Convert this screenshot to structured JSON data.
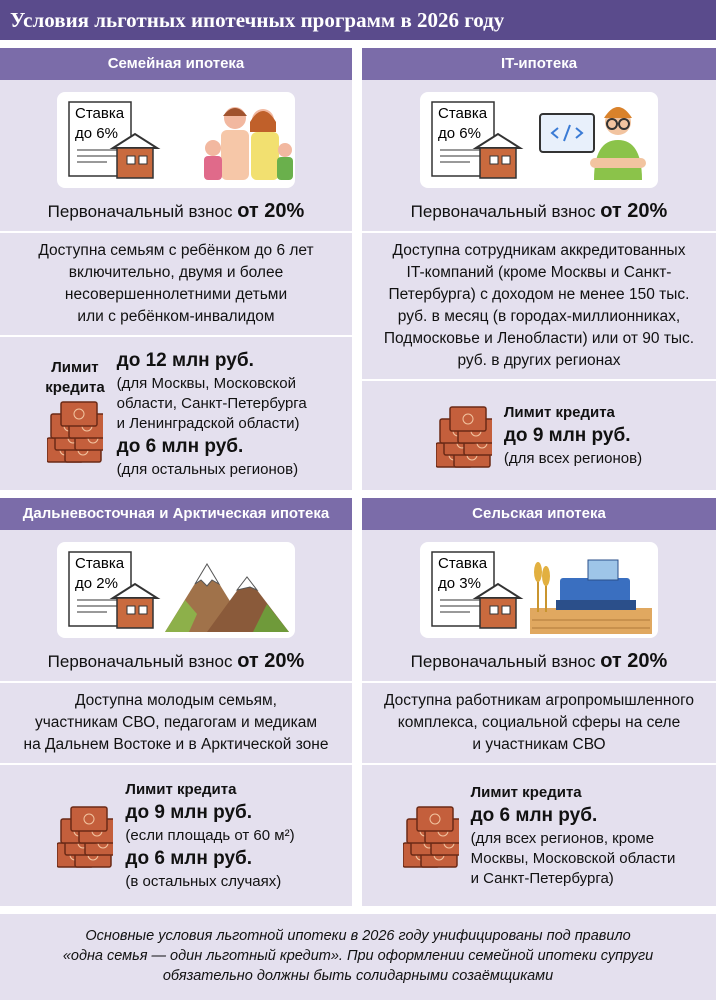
{
  "title": "Условия льготных ипотечных программ в 2026 году",
  "programs": [
    {
      "name": "Семейная ипотека",
      "rate_label": "Ставка",
      "rate": "до 6%",
      "down_payment_label": "Первоначальный взнос",
      "down_payment": "от 20%",
      "description": [
        "Доступна семьям с ребёнком до 6 лет",
        "включительно, двумя и более",
        "несовершеннолетними детьми",
        "или с ребёнком-инвалидом"
      ],
      "limit_label": [
        "Лимит",
        "кредита"
      ],
      "limits": [
        {
          "amount": "до 12 млн руб.",
          "note": [
            "(для Москвы, Московской",
            "области, Санкт-Петербурга",
            "и Ленинградской области)"
          ]
        },
        {
          "amount": "до 6 млн руб.",
          "note": [
            "(для остальных регионов)"
          ]
        }
      ]
    },
    {
      "name": "IT-ипотека",
      "rate_label": "Ставка",
      "rate": "до 6%",
      "down_payment_label": "Первоначальный взнос",
      "down_payment": "от 20%",
      "description": [
        "Доступна сотрудникам аккредитованных",
        "IT-компаний (кроме Москвы и Санкт-",
        "Петербурга) с доходом не менее 150 тыс.",
        "руб. в месяц (в городах-миллионниках,",
        "Подмосковье и Ленобласти) или от 90 тыс.",
        "руб. в других регионах"
      ],
      "limit_label": [
        "Лимит кредита"
      ],
      "limits": [
        {
          "amount": "до 9 млн руб.",
          "note": [
            "(для всех регионов)"
          ]
        }
      ]
    },
    {
      "name": "Дальневосточная и Арктическая ипотека",
      "rate_label": "Ставка",
      "rate": "до 2%",
      "down_payment_label": "Первоначальный взнос",
      "down_payment": "от 20%",
      "description": [
        "Доступна молодым семьям,",
        "участникам СВО, педагогам и медикам",
        "на Дальнем Востоке и в Арктической зоне"
      ],
      "limit_label": [
        "Лимит кредита"
      ],
      "limits": [
        {
          "amount": "до 9 млн руб.",
          "note": [
            "(если площадь от 60 м²)"
          ]
        },
        {
          "amount": "до 6 млн руб.",
          "note": [
            "(в остальных случаях)"
          ]
        }
      ]
    },
    {
      "name": "Сельская ипотека",
      "rate_label": "Ставка",
      "rate": "до 3%",
      "down_payment_label": "Первоначальный взнос",
      "down_payment": "от 20%",
      "description": [
        "Доступна работникам агропромышленного",
        "комплекса, социальной сферы на селе",
        "и участникам СВО"
      ],
      "limit_label": [
        "Лимит кредита"
      ],
      "limits": [
        {
          "amount": "до 6 млн руб.",
          "note": [
            "(для всех регионов, кроме",
            "Москвы, Московской области",
            "и Санкт-Петербурга)"
          ]
        }
      ]
    }
  ],
  "footer": [
    "Основные условия льготной ипотеки в 2026 году унифицированы под правило",
    "«одна семья — один льготный кредит». При оформлении семейной ипотеки супруги",
    "обязательно должны быть солидарными созаёмщиками"
  ]
}
